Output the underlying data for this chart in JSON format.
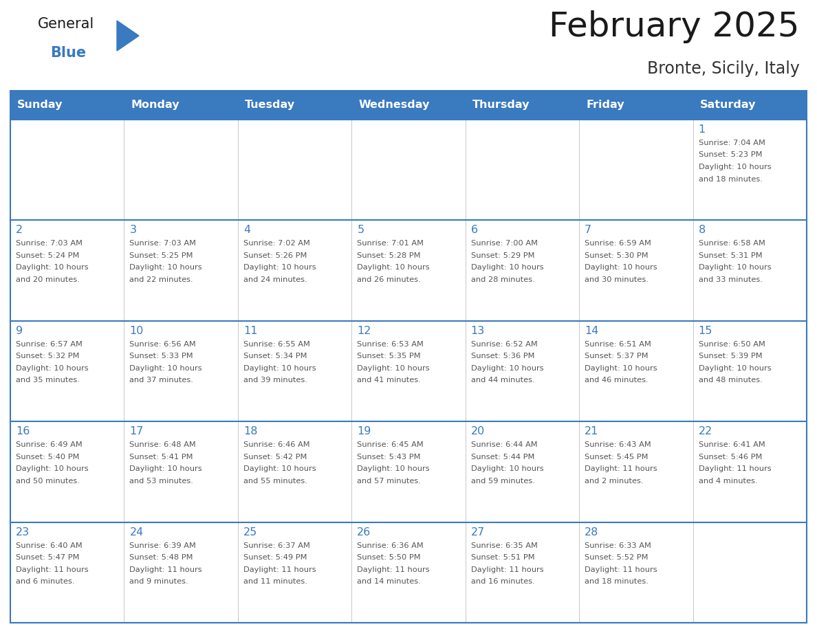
{
  "title": "February 2025",
  "subtitle": "Bronte, Sicily, Italy",
  "days_of_week": [
    "Sunday",
    "Monday",
    "Tuesday",
    "Wednesday",
    "Thursday",
    "Friday",
    "Saturday"
  ],
  "header_color": "#3a7abf",
  "header_text_color": "#ffffff",
  "grid_line_color": "#3a7abf",
  "day_num_color": "#3a7abf",
  "info_text_color": "#555555",
  "title_color": "#1a1a1a",
  "subtitle_color": "#333333",
  "logo_general_color": "#1a1a1a",
  "logo_blue_color": "#3a7abf",
  "weeks": [
    [
      {
        "day": "",
        "info": ""
      },
      {
        "day": "",
        "info": ""
      },
      {
        "day": "",
        "info": ""
      },
      {
        "day": "",
        "info": ""
      },
      {
        "day": "",
        "info": ""
      },
      {
        "day": "",
        "info": ""
      },
      {
        "day": "1",
        "info": "Sunrise: 7:04 AM\nSunset: 5:23 PM\nDaylight: 10 hours\nand 18 minutes."
      }
    ],
    [
      {
        "day": "2",
        "info": "Sunrise: 7:03 AM\nSunset: 5:24 PM\nDaylight: 10 hours\nand 20 minutes."
      },
      {
        "day": "3",
        "info": "Sunrise: 7:03 AM\nSunset: 5:25 PM\nDaylight: 10 hours\nand 22 minutes."
      },
      {
        "day": "4",
        "info": "Sunrise: 7:02 AM\nSunset: 5:26 PM\nDaylight: 10 hours\nand 24 minutes."
      },
      {
        "day": "5",
        "info": "Sunrise: 7:01 AM\nSunset: 5:28 PM\nDaylight: 10 hours\nand 26 minutes."
      },
      {
        "day": "6",
        "info": "Sunrise: 7:00 AM\nSunset: 5:29 PM\nDaylight: 10 hours\nand 28 minutes."
      },
      {
        "day": "7",
        "info": "Sunrise: 6:59 AM\nSunset: 5:30 PM\nDaylight: 10 hours\nand 30 minutes."
      },
      {
        "day": "8",
        "info": "Sunrise: 6:58 AM\nSunset: 5:31 PM\nDaylight: 10 hours\nand 33 minutes."
      }
    ],
    [
      {
        "day": "9",
        "info": "Sunrise: 6:57 AM\nSunset: 5:32 PM\nDaylight: 10 hours\nand 35 minutes."
      },
      {
        "day": "10",
        "info": "Sunrise: 6:56 AM\nSunset: 5:33 PM\nDaylight: 10 hours\nand 37 minutes."
      },
      {
        "day": "11",
        "info": "Sunrise: 6:55 AM\nSunset: 5:34 PM\nDaylight: 10 hours\nand 39 minutes."
      },
      {
        "day": "12",
        "info": "Sunrise: 6:53 AM\nSunset: 5:35 PM\nDaylight: 10 hours\nand 41 minutes."
      },
      {
        "day": "13",
        "info": "Sunrise: 6:52 AM\nSunset: 5:36 PM\nDaylight: 10 hours\nand 44 minutes."
      },
      {
        "day": "14",
        "info": "Sunrise: 6:51 AM\nSunset: 5:37 PM\nDaylight: 10 hours\nand 46 minutes."
      },
      {
        "day": "15",
        "info": "Sunrise: 6:50 AM\nSunset: 5:39 PM\nDaylight: 10 hours\nand 48 minutes."
      }
    ],
    [
      {
        "day": "16",
        "info": "Sunrise: 6:49 AM\nSunset: 5:40 PM\nDaylight: 10 hours\nand 50 minutes."
      },
      {
        "day": "17",
        "info": "Sunrise: 6:48 AM\nSunset: 5:41 PM\nDaylight: 10 hours\nand 53 minutes."
      },
      {
        "day": "18",
        "info": "Sunrise: 6:46 AM\nSunset: 5:42 PM\nDaylight: 10 hours\nand 55 minutes."
      },
      {
        "day": "19",
        "info": "Sunrise: 6:45 AM\nSunset: 5:43 PM\nDaylight: 10 hours\nand 57 minutes."
      },
      {
        "day": "20",
        "info": "Sunrise: 6:44 AM\nSunset: 5:44 PM\nDaylight: 10 hours\nand 59 minutes."
      },
      {
        "day": "21",
        "info": "Sunrise: 6:43 AM\nSunset: 5:45 PM\nDaylight: 11 hours\nand 2 minutes."
      },
      {
        "day": "22",
        "info": "Sunrise: 6:41 AM\nSunset: 5:46 PM\nDaylight: 11 hours\nand 4 minutes."
      }
    ],
    [
      {
        "day": "23",
        "info": "Sunrise: 6:40 AM\nSunset: 5:47 PM\nDaylight: 11 hours\nand 6 minutes."
      },
      {
        "day": "24",
        "info": "Sunrise: 6:39 AM\nSunset: 5:48 PM\nDaylight: 11 hours\nand 9 minutes."
      },
      {
        "day": "25",
        "info": "Sunrise: 6:37 AM\nSunset: 5:49 PM\nDaylight: 11 hours\nand 11 minutes."
      },
      {
        "day": "26",
        "info": "Sunrise: 6:36 AM\nSunset: 5:50 PM\nDaylight: 11 hours\nand 14 minutes."
      },
      {
        "day": "27",
        "info": "Sunrise: 6:35 AM\nSunset: 5:51 PM\nDaylight: 11 hours\nand 16 minutes."
      },
      {
        "day": "28",
        "info": "Sunrise: 6:33 AM\nSunset: 5:52 PM\nDaylight: 11 hours\nand 18 minutes."
      },
      {
        "day": "",
        "info": ""
      }
    ]
  ]
}
